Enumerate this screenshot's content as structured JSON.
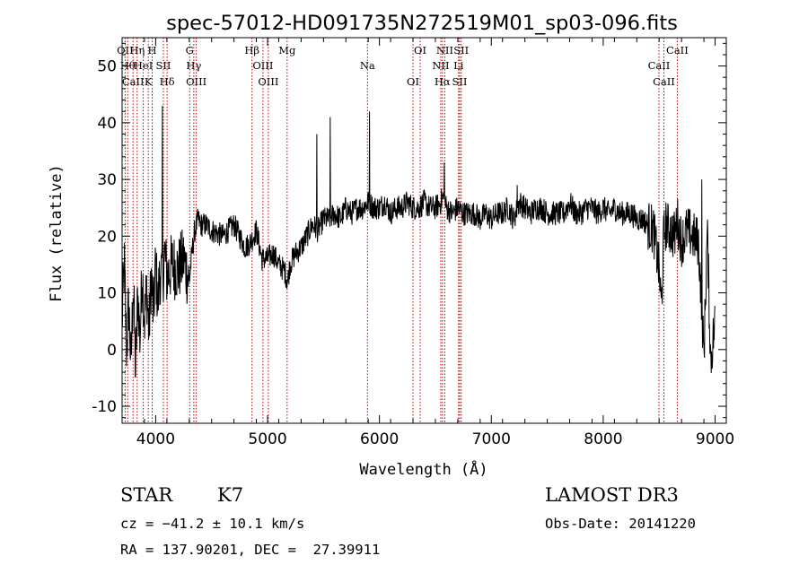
{
  "chart_data": {
    "type": "line",
    "title": "spec-57012-HD091735N272519M01_sp03-096.fits",
    "xlabel": "Wavelength (Å)",
    "ylabel": "Flux (relative)",
    "xlim": [
      3700,
      9100
    ],
    "ylim": [
      -13,
      55
    ],
    "xticks": [
      4000,
      5000,
      6000,
      7000,
      8000,
      9000
    ],
    "yticks": [
      -10,
      0,
      10,
      20,
      30,
      40,
      50
    ],
    "series": [
      {
        "name": "flux",
        "x": [
          3700,
          3720,
          3740,
          3760,
          3780,
          3800,
          3820,
          3840,
          3860,
          3880,
          3900,
          3920,
          3940,
          3960,
          3980,
          4000,
          4020,
          4040,
          4060,
          4080,
          4100,
          4150,
          4200,
          4250,
          4300,
          4330,
          4350,
          4380,
          4400,
          4450,
          4500,
          4600,
          4700,
          4800,
          4850,
          4900,
          4950,
          5000,
          5050,
          5100,
          5150,
          5180,
          5200,
          5250,
          5300,
          5350,
          5400,
          5450,
          5500,
          5550,
          5600,
          5650,
          5700,
          5750,
          5800,
          5850,
          5900,
          5950,
          6000,
          6050,
          6100,
          6150,
          6200,
          6250,
          6300,
          6350,
          6400,
          6450,
          6500,
          6550,
          6563,
          6600,
          6650,
          6700,
          6750,
          6800,
          6850,
          6900,
          6950,
          7000,
          7050,
          7100,
          7150,
          7200,
          7250,
          7300,
          7350,
          7400,
          7450,
          7500,
          7550,
          7600,
          7650,
          7700,
          7750,
          7800,
          7850,
          7900,
          7950,
          8000,
          8050,
          8100,
          8150,
          8200,
          8250,
          8300,
          8350,
          8400,
          8450,
          8500,
          8520,
          8540,
          8560,
          8600,
          8640,
          8660,
          8700,
          8750,
          8800,
          8850,
          8870,
          8900,
          8930,
          8960,
          9000
        ],
        "y": [
          5,
          15,
          0,
          8,
          -3,
          12,
          -4,
          10,
          2,
          14,
          5,
          11,
          3,
          13,
          6,
          15,
          8,
          14,
          12,
          17,
          13,
          15,
          14,
          16,
          12,
          18,
          21,
          23,
          22,
          22,
          21,
          20,
          22,
          18,
          19,
          21,
          16,
          16,
          17,
          15,
          14,
          12,
          15,
          17,
          18,
          20,
          22,
          21,
          23,
          23,
          24,
          23,
          25,
          24,
          25,
          25,
          26,
          25,
          25,
          26,
          24,
          25,
          25,
          26,
          25,
          25,
          26,
          25,
          25,
          26,
          27,
          25,
          24,
          25,
          24,
          24,
          24,
          23,
          24,
          23,
          24,
          24,
          25,
          23,
          26,
          25,
          24,
          25,
          25,
          24,
          24,
          24,
          24,
          26,
          24,
          24,
          25,
          25,
          24,
          25,
          24,
          25,
          24,
          24,
          24,
          23,
          23,
          22,
          21,
          14,
          7,
          20,
          22,
          21,
          20,
          23,
          19,
          21,
          20,
          19,
          12,
          -1,
          21,
          -2,
          5
        ],
        "spikes": [
          [
            4060,
            43
          ],
          [
            5440,
            38
          ],
          [
            5560,
            41
          ],
          [
            5910,
            42
          ],
          [
            6580,
            33
          ],
          [
            7230,
            29
          ],
          [
            8880,
            30
          ]
        ]
      }
    ],
    "line_markers": [
      {
        "wavelength": 3727,
        "label": "OII"
      },
      {
        "wavelength": 3750,
        "label": "Hθ"
      },
      {
        "wavelength": 3798,
        "label": "CaII"
      },
      {
        "wavelength": 3835,
        "label": "Hη"
      },
      {
        "wavelength": 3889,
        "label": "HeI"
      },
      {
        "wavelength": 3934,
        "label": "K"
      },
      {
        "wavelength": 3969,
        "label": "H"
      },
      {
        "wavelength": 4069,
        "label": "SII"
      },
      {
        "wavelength": 4102,
        "label": "Hδ"
      },
      {
        "wavelength": 4304,
        "label": "G"
      },
      {
        "wavelength": 4341,
        "label": "Hγ"
      },
      {
        "wavelength": 4363,
        "label": "OIII"
      },
      {
        "wavelength": 4861,
        "label": "Hβ"
      },
      {
        "wavelength": 4959,
        "label": "OIII"
      },
      {
        "wavelength": 5007,
        "label": "OIII"
      },
      {
        "wavelength": 5175,
        "label": "Mg"
      },
      {
        "wavelength": 5893,
        "label": "Na"
      },
      {
        "wavelength": 6300,
        "label": "OI"
      },
      {
        "wavelength": 6364,
        "label": "OI"
      },
      {
        "wavelength": 6548,
        "label": "NII"
      },
      {
        "wavelength": 6563,
        "label": "Hα"
      },
      {
        "wavelength": 6584,
        "label": "NII"
      },
      {
        "wavelength": 6707,
        "label": "Li"
      },
      {
        "wavelength": 6717,
        "label": "SII"
      },
      {
        "wavelength": 6731,
        "label": "SII"
      },
      {
        "wavelength": 8498,
        "label": "CaII"
      },
      {
        "wavelength": 8542,
        "label": "CaII"
      },
      {
        "wavelength": 8662,
        "label": "CaII"
      }
    ]
  },
  "info": {
    "class_label": "STAR",
    "subclass": "K7",
    "cz": "cz = −41.2 ± 10.1 km/s",
    "coords": "RA = 137.90201, DEC =  27.39911",
    "survey": "LAMOST DR3",
    "obs_date": "Obs-Date: 20141220"
  }
}
